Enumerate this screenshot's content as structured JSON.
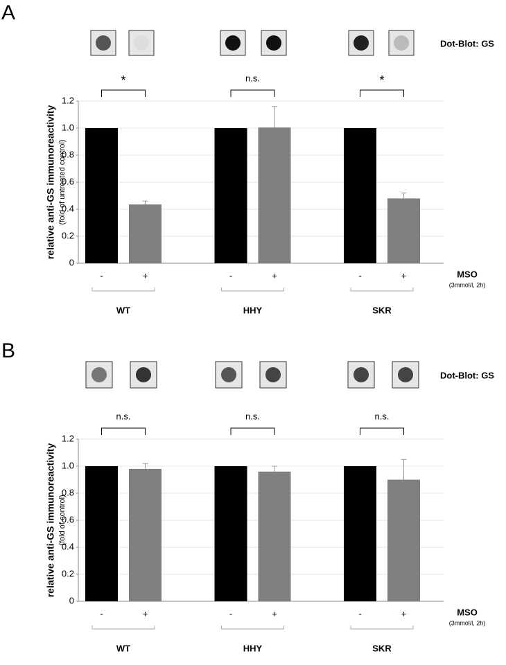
{
  "chart_data": [
    {
      "type": "bar",
      "panel": "A",
      "annotation": "Dot-Blot: GS",
      "y_label": "relative anti-GS immunoreactivity",
      "y_sublabel": "(fold of untreated control)",
      "x_label": "MSO",
      "x_sublabel": "(3mmol/l, 2h)",
      "categories": [
        "WT",
        "HHY",
        "SKR"
      ],
      "significance": [
        "*",
        "n.s.",
        "*"
      ],
      "series": [
        {
          "name": "-",
          "color": "#000000",
          "values": [
            1,
            1,
            1
          ]
        },
        {
          "name": "+",
          "color": "#808080",
          "values": [
            0.435,
            1.005,
            0.48
          ],
          "errors": [
            0.025,
            0.155,
            0.04
          ]
        }
      ],
      "ylim": [
        0,
        1.2
      ],
      "yticks": [
        0,
        0.2,
        0.4,
        0.6,
        0.8,
        {
          "value": 1,
          "label": "1.0"
        },
        1.2
      ],
      "grid": true
    },
    {
      "type": "bar",
      "panel": "B",
      "annotation": "Dot-Blot: GS",
      "y_label": "relative anti-GS immunoreactivity",
      "y_sublabel": "(fold of control)",
      "x_label": "MSO",
      "x_sublabel": "(3mmol/l, 2h)",
      "categories": [
        "WT",
        "HHY",
        "SKR"
      ],
      "significance": [
        "n.s.",
        "n.s.",
        "n.s."
      ],
      "series": [
        {
          "name": "-",
          "color": "#000000",
          "values": [
            1,
            1,
            1
          ]
        },
        {
          "name": "+",
          "color": "#808080",
          "values": [
            0.98,
            0.96,
            0.9
          ],
          "errors": [
            0.04,
            0.04,
            0.15
          ]
        }
      ],
      "ylim": [
        0,
        1.2
      ],
      "yticks": [
        0,
        0.2,
        0.4,
        0.6,
        0.8,
        {
          "value": 1,
          "label": "1.0"
        },
        1.2
      ],
      "grid": true
    }
  ]
}
